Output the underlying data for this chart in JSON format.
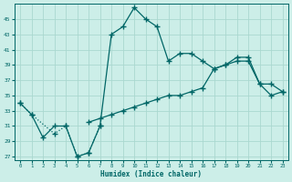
{
  "xlabel": "Humidex (Indice chaleur)",
  "bg_color": "#cceee8",
  "grid_color": "#aad8d0",
  "line_color": "#006666",
  "x_values": [
    0,
    1,
    2,
    3,
    4,
    5,
    6,
    7,
    8,
    9,
    10,
    11,
    12,
    13,
    14,
    15,
    16,
    17,
    18,
    19,
    20,
    21,
    22,
    23
  ],
  "series_main": [
    34,
    32.5,
    29.5,
    31,
    31,
    27,
    27.5,
    31,
    43,
    44,
    46.5,
    45,
    44,
    39.5,
    40.5,
    40.5,
    39.5,
    38.5,
    39,
    40,
    40,
    36.5,
    36.5,
    35.5
  ],
  "series_dotted": [
    34,
    32.5,
    null,
    30,
    31,
    27,
    27.5,
    31,
    null,
    null,
    null,
    null,
    null,
    null,
    null,
    null,
    null,
    null,
    null,
    null,
    null,
    null,
    null,
    null
  ],
  "series_flat": [
    null,
    null,
    null,
    null,
    null,
    null,
    31.5,
    32,
    32.5,
    33,
    33.5,
    34,
    34.5,
    35,
    35,
    35.5,
    36,
    38.5,
    39,
    39.5,
    39.5,
    36.5,
    35,
    35.5
  ],
  "ylim": [
    26.5,
    47
  ],
  "yticks": [
    27,
    29,
    31,
    33,
    35,
    37,
    39,
    41,
    43,
    45
  ],
  "xlim": [
    -0.5,
    23.5
  ],
  "xticks": [
    0,
    1,
    2,
    3,
    4,
    5,
    6,
    7,
    8,
    9,
    10,
    11,
    12,
    13,
    14,
    15,
    16,
    17,
    18,
    19,
    20,
    21,
    22,
    23
  ]
}
